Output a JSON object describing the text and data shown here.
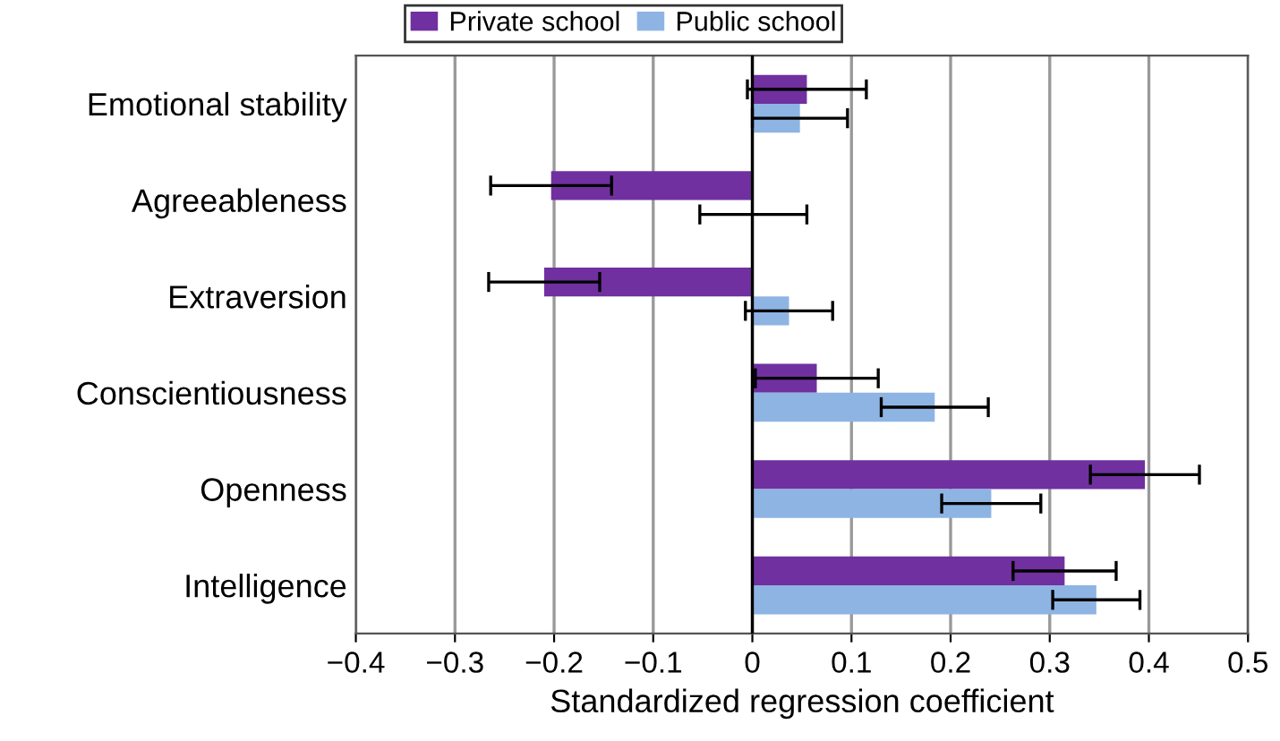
{
  "chart_data": {
    "type": "bar",
    "orientation": "horizontal",
    "xlabel": "Standardized regression coefficient",
    "categories": [
      "Emotional stability",
      "Agreeableness",
      "Extraversion",
      "Conscientiousness",
      "Openness",
      "Intelligence"
    ],
    "series": [
      {
        "name": "Private school",
        "color": "#7030a0",
        "values": [
          0.055,
          -0.203,
          -0.21,
          0.065,
          0.396,
          0.315
        ],
        "errors": [
          0.06,
          0.061,
          0.056,
          0.062,
          0.055,
          0.052
        ]
      },
      {
        "name": "Public school",
        "color": "#8eb4e3",
        "values": [
          0.048,
          0.001,
          0.037,
          0.184,
          0.241,
          0.347
        ],
        "errors": [
          0.048,
          0.054,
          0.044,
          0.054,
          0.05,
          0.044
        ]
      }
    ],
    "xlim": [
      -0.4,
      0.5
    ],
    "xticks": [
      {
        "value": -0.4,
        "label": "−0.4"
      },
      {
        "value": -0.3,
        "label": "−0.3"
      },
      {
        "value": -0.2,
        "label": "−0.2"
      },
      {
        "value": -0.1,
        "label": "−0.1"
      },
      0,
      0.1,
      0.2,
      0.3,
      0.4,
      0.5
    ],
    "ref_lines": [
      {
        "axis": "x",
        "value": 0,
        "color": "#000000"
      }
    ],
    "grid": "x",
    "legend": "top"
  }
}
